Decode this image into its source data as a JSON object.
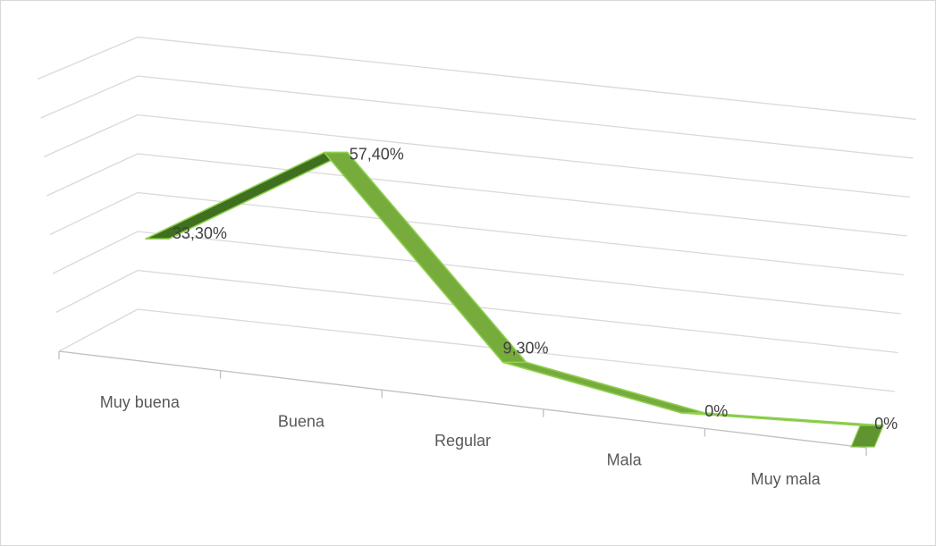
{
  "chart_data": {
    "type": "line",
    "style": "3d-ribbon",
    "categories": [
      "Muy buena",
      "Buena",
      "Regular",
      "Mala",
      "Muy mala"
    ],
    "values": [
      33.3,
      57.4,
      9.3,
      0,
      0
    ],
    "data_labels": [
      "33,30%",
      "57,40%",
      "9,30%",
      "0%",
      "0%"
    ],
    "ylim": [
      0,
      70
    ],
    "grid": true,
    "legend": "none",
    "colors": {
      "ribbon_top": "#77ab3c",
      "ribbon_edge": "#8fd14f",
      "ribbon_side": "#3f6f1f",
      "gridline": "#d9d9d9",
      "axis": "#bfbfbf",
      "label_text": "#595959"
    }
  }
}
